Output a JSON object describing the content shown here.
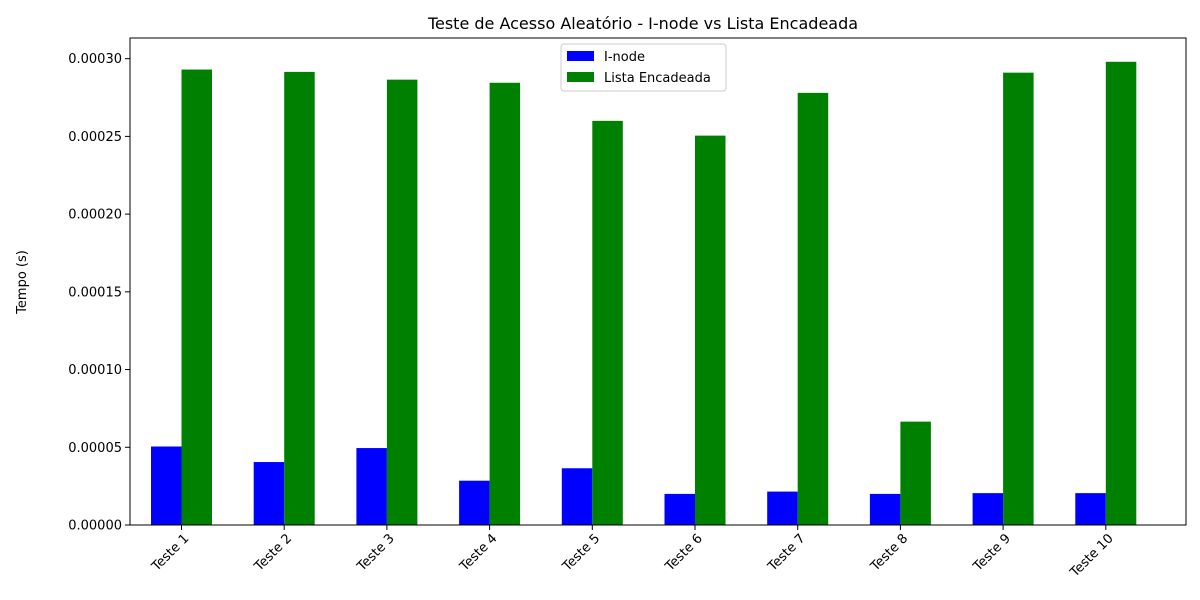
{
  "chart_data": {
    "type": "bar",
    "title": "Teste de Acesso Aleatório - I-node vs Lista Encadeada",
    "xlabel": "",
    "ylabel": "Tempo (s)",
    "categories": [
      "Teste 1",
      "Teste 2",
      "Teste 3",
      "Teste 4",
      "Teste 5",
      "Teste 6",
      "Teste 7",
      "Teste 8",
      "Teste 9",
      "Teste 10"
    ],
    "series": [
      {
        "name": "I-node",
        "color": "#0000ff",
        "values": [
          5.05e-05,
          4.05e-05,
          4.95e-05,
          2.85e-05,
          3.65e-05,
          2e-05,
          2.15e-05,
          2e-05,
          2.05e-05,
          2.05e-05
        ]
      },
      {
        "name": "Lista Encadeada",
        "color": "#008000",
        "values": [
          0.000293,
          0.0002915,
          0.0002865,
          0.0002845,
          0.00026,
          0.0002505,
          0.000278,
          6.65e-05,
          0.000291,
          0.000298
        ]
      }
    ],
    "ylim": [
      0,
      0.0003133
    ],
    "yticks": [
      "0.00000",
      "0.00005",
      "0.00010",
      "0.00015",
      "0.00020",
      "0.00025",
      "0.00030"
    ],
    "ytick_values": [
      0,
      5e-05,
      0.0001,
      0.00015,
      0.0002,
      0.00025,
      0.0003
    ],
    "grid": false,
    "legend_position": "top-center"
  }
}
